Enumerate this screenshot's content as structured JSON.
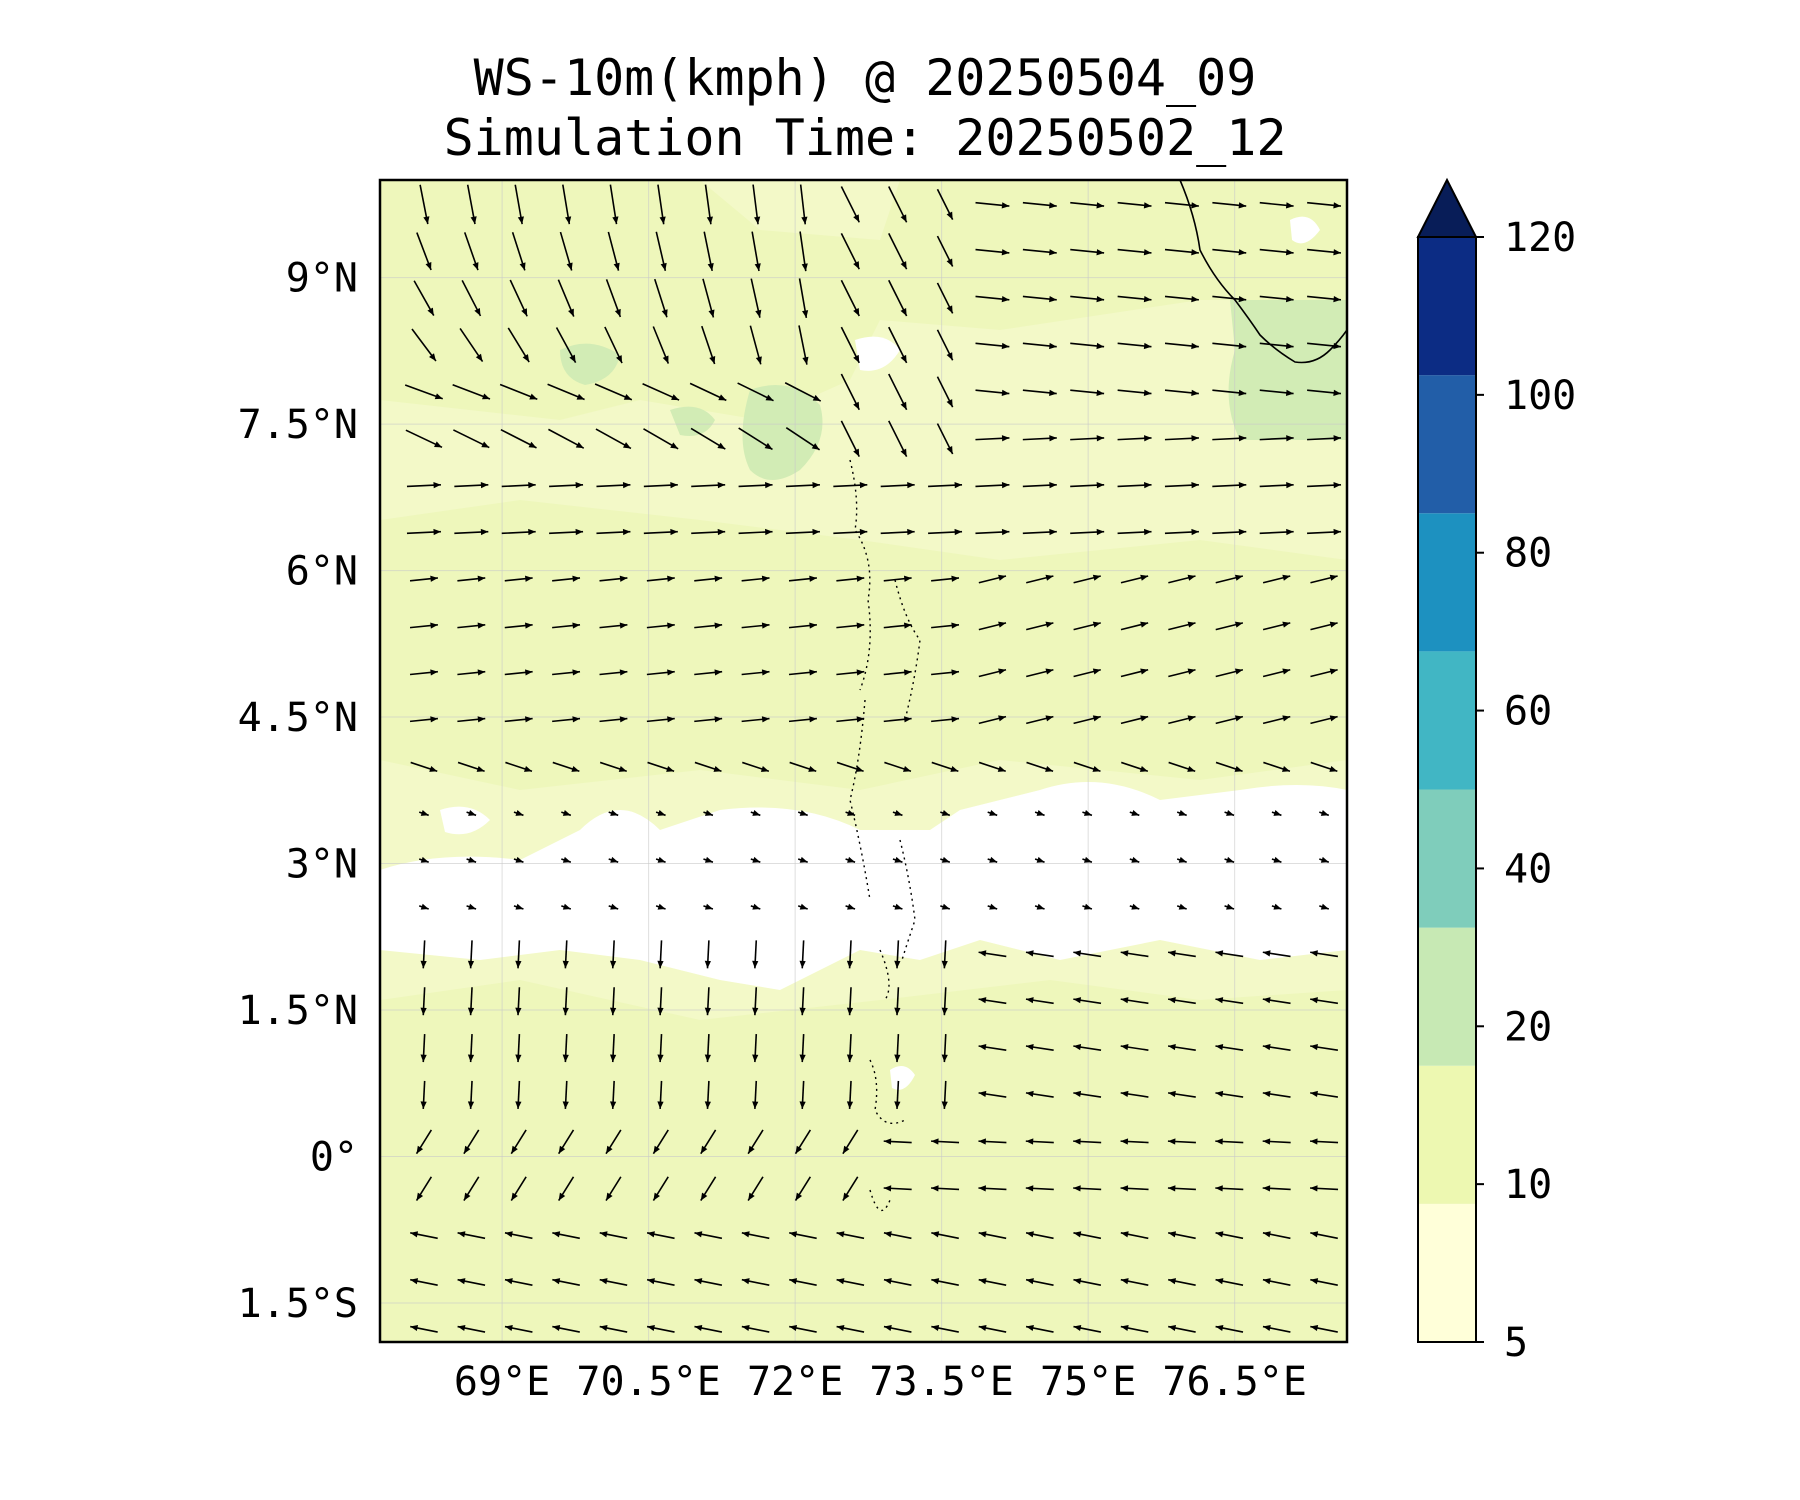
{
  "title": {
    "line1": "WS-10m(kmph) @ 20250504_09",
    "line2": "Simulation Time: 20250502_12"
  },
  "map": {
    "lon_range": [
      67.75,
      77.65
    ],
    "lat_range": [
      -1.9,
      10.0
    ],
    "lat_ticks": [
      {
        "value": 9.0,
        "label": "9°N"
      },
      {
        "value": 7.5,
        "label": "7.5°N"
      },
      {
        "value": 6.0,
        "label": "6°N"
      },
      {
        "value": 4.5,
        "label": "4.5°N"
      },
      {
        "value": 3.0,
        "label": "3°N"
      },
      {
        "value": 1.5,
        "label": "1.5°N"
      },
      {
        "value": 0.0,
        "label": "0°"
      },
      {
        "value": -1.5,
        "label": "1.5°S"
      }
    ],
    "lon_ticks": [
      {
        "value": 69.0,
        "label": "69°E"
      },
      {
        "value": 70.5,
        "label": "70.5°E"
      },
      {
        "value": 72.0,
        "label": "72°E"
      },
      {
        "value": 73.5,
        "label": "73.5°E"
      },
      {
        "value": 75.0,
        "label": "75°E"
      },
      {
        "value": 76.5,
        "label": "76.5°E"
      }
    ],
    "gridlines": true,
    "background_field": "wind speed 10m, mostly 5-20 kmph",
    "calm_band_lat": [
      2.2,
      3.5
    ]
  },
  "colorbar": {
    "levels": [
      5,
      10,
      20,
      40,
      60,
      80,
      100,
      120
    ],
    "tick_labels": [
      "5",
      "10",
      "20",
      "40",
      "60",
      "80",
      "100",
      "120"
    ],
    "colors": [
      "#ffffd9",
      "#edf8b1",
      "#c7e9b4",
      "#7fcdbb",
      "#41b6c4",
      "#1d91c0",
      "#225ea8",
      "#0c2c84"
    ],
    "extend": "max",
    "extend_color": "#081d58"
  },
  "colors": {
    "field_light": "#f3f9c8",
    "field_mid": "#eef7bb",
    "field_strong": "#d2ecb5",
    "calm": "#ffffff",
    "arrow": "#000000"
  }
}
